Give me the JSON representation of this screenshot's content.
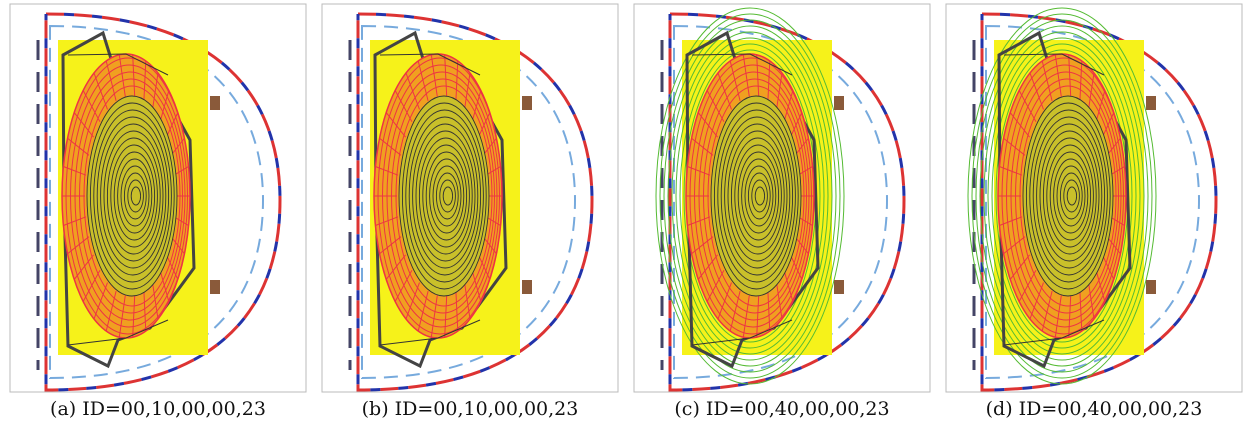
{
  "panels": [
    {
      "caption": "(a) ID=00,10,00,00,23"
    },
    {
      "caption": "(b) ID=00,10,00,00,23"
    },
    {
      "caption": "(c) ID=00,40,00,00,23"
    },
    {
      "caption": "(d) ID=00,40,00,00,23"
    }
  ]
}
